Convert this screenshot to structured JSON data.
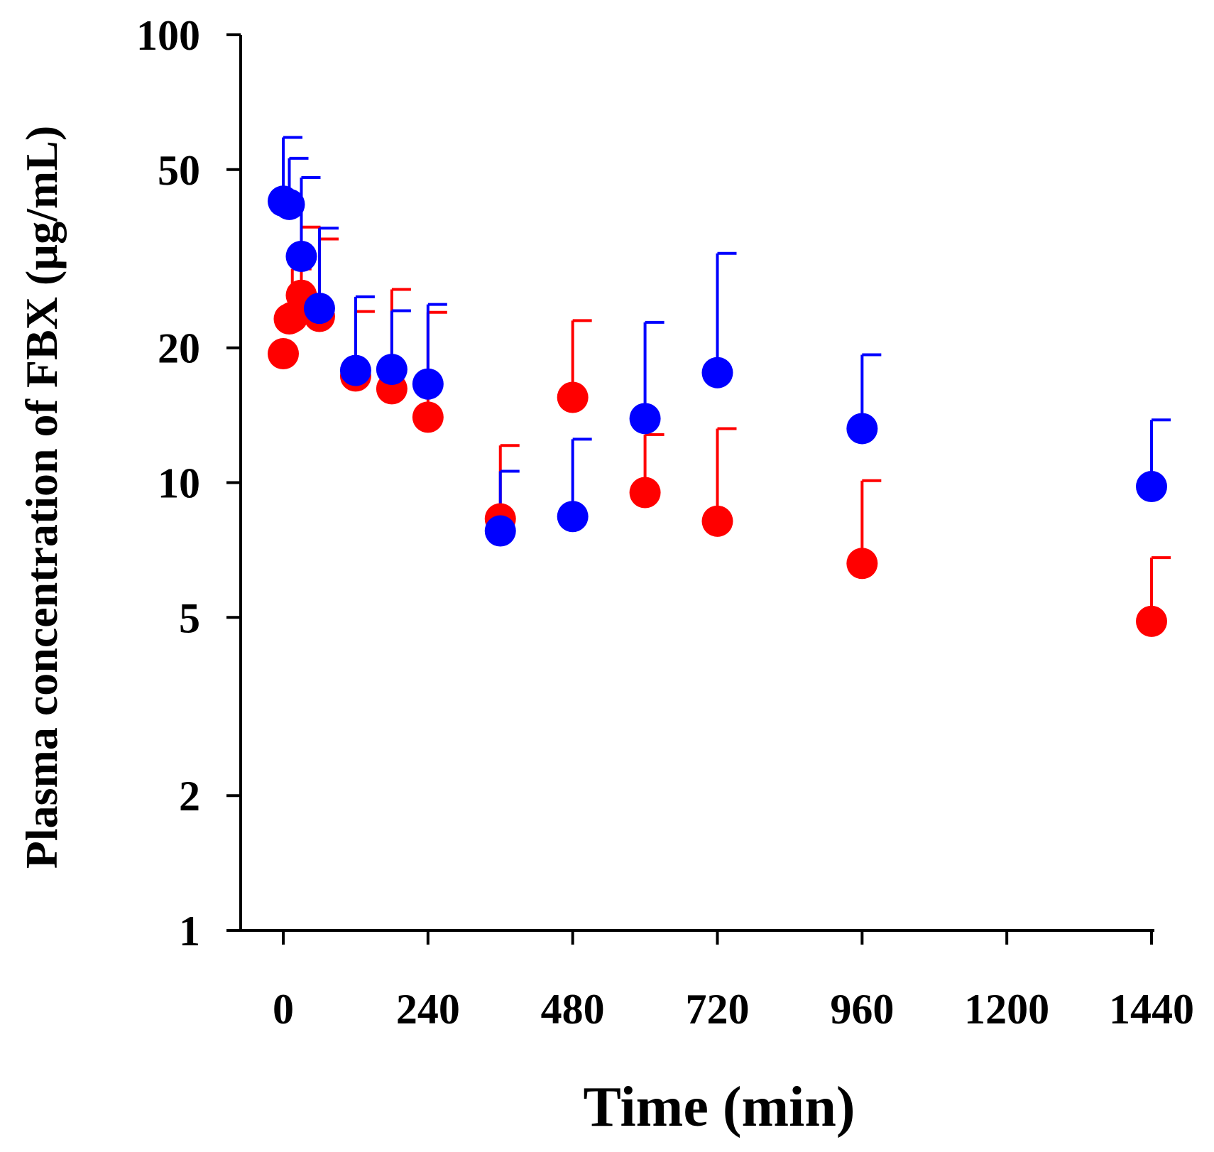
{
  "chart_data": {
    "type": "scatter",
    "title": "",
    "xlabel": "Time (min)",
    "ylabel": "Plasma concentration of  FBX (µg/mL)",
    "xlim": [
      0,
      1440
    ],
    "ylim": [
      1,
      100
    ],
    "y_scale": "log",
    "x_ticks": [
      0,
      240,
      480,
      720,
      960,
      1200,
      1440
    ],
    "x_tick_labels": [
      "0",
      "240",
      "480",
      "720",
      "960",
      "1200",
      "1440"
    ],
    "y_ticks": [
      1,
      2,
      5,
      10,
      20,
      50,
      100
    ],
    "y_tick_labels": [
      "1",
      "2",
      "5",
      "10",
      "20",
      "50",
      "100"
    ],
    "grid": false,
    "legend": "none",
    "series": [
      {
        "name": "red series",
        "color": "#ff0000",
        "points": [
          {
            "x": 0,
            "y": 19.4,
            "err": 0
          },
          {
            "x": 10,
            "y": 23.2,
            "err": 3.4
          },
          {
            "x": 15,
            "y": 23.4,
            "err": 6.6
          },
          {
            "x": 30,
            "y": 26.2,
            "err": 11.0
          },
          {
            "x": 60,
            "y": 23.5,
            "err": 11.5
          },
          {
            "x": 120,
            "y": 17.3,
            "err": 6.8
          },
          {
            "x": 180,
            "y": 16.2,
            "err": 10.8
          },
          {
            "x": 240,
            "y": 14.0,
            "err": 10.0
          },
          {
            "x": 360,
            "y": 8.3,
            "err": 3.8
          },
          {
            "x": 480,
            "y": 15.5,
            "err": 7.5
          },
          {
            "x": 600,
            "y": 9.5,
            "err": 3.3
          },
          {
            "x": 720,
            "y": 8.2,
            "err": 5.0
          },
          {
            "x": 960,
            "y": 6.6,
            "err": 3.5
          },
          {
            "x": 1440,
            "y": 4.9,
            "err": 1.9
          }
        ]
      },
      {
        "name": "blue series",
        "color": "#0000ff",
        "points": [
          {
            "x": 0,
            "y": 42.5,
            "err": 16.5
          },
          {
            "x": 10,
            "y": 41.8,
            "err": 11.2
          },
          {
            "x": 30,
            "y": 32.0,
            "err": 16.0
          },
          {
            "x": 60,
            "y": 24.5,
            "err": 12.5
          },
          {
            "x": 120,
            "y": 17.8,
            "err": 8.2
          },
          {
            "x": 180,
            "y": 17.9,
            "err": 6.3
          },
          {
            "x": 240,
            "y": 16.6,
            "err": 8.4
          },
          {
            "x": 360,
            "y": 7.8,
            "err": 2.8
          },
          {
            "x": 480,
            "y": 8.4,
            "err": 4.1
          },
          {
            "x": 600,
            "y": 13.9,
            "err": 8.9
          },
          {
            "x": 720,
            "y": 17.6,
            "err": 14.9
          },
          {
            "x": 960,
            "y": 13.2,
            "err": 6.1
          },
          {
            "x": 1440,
            "y": 9.8,
            "err": 4.0
          }
        ]
      }
    ]
  }
}
